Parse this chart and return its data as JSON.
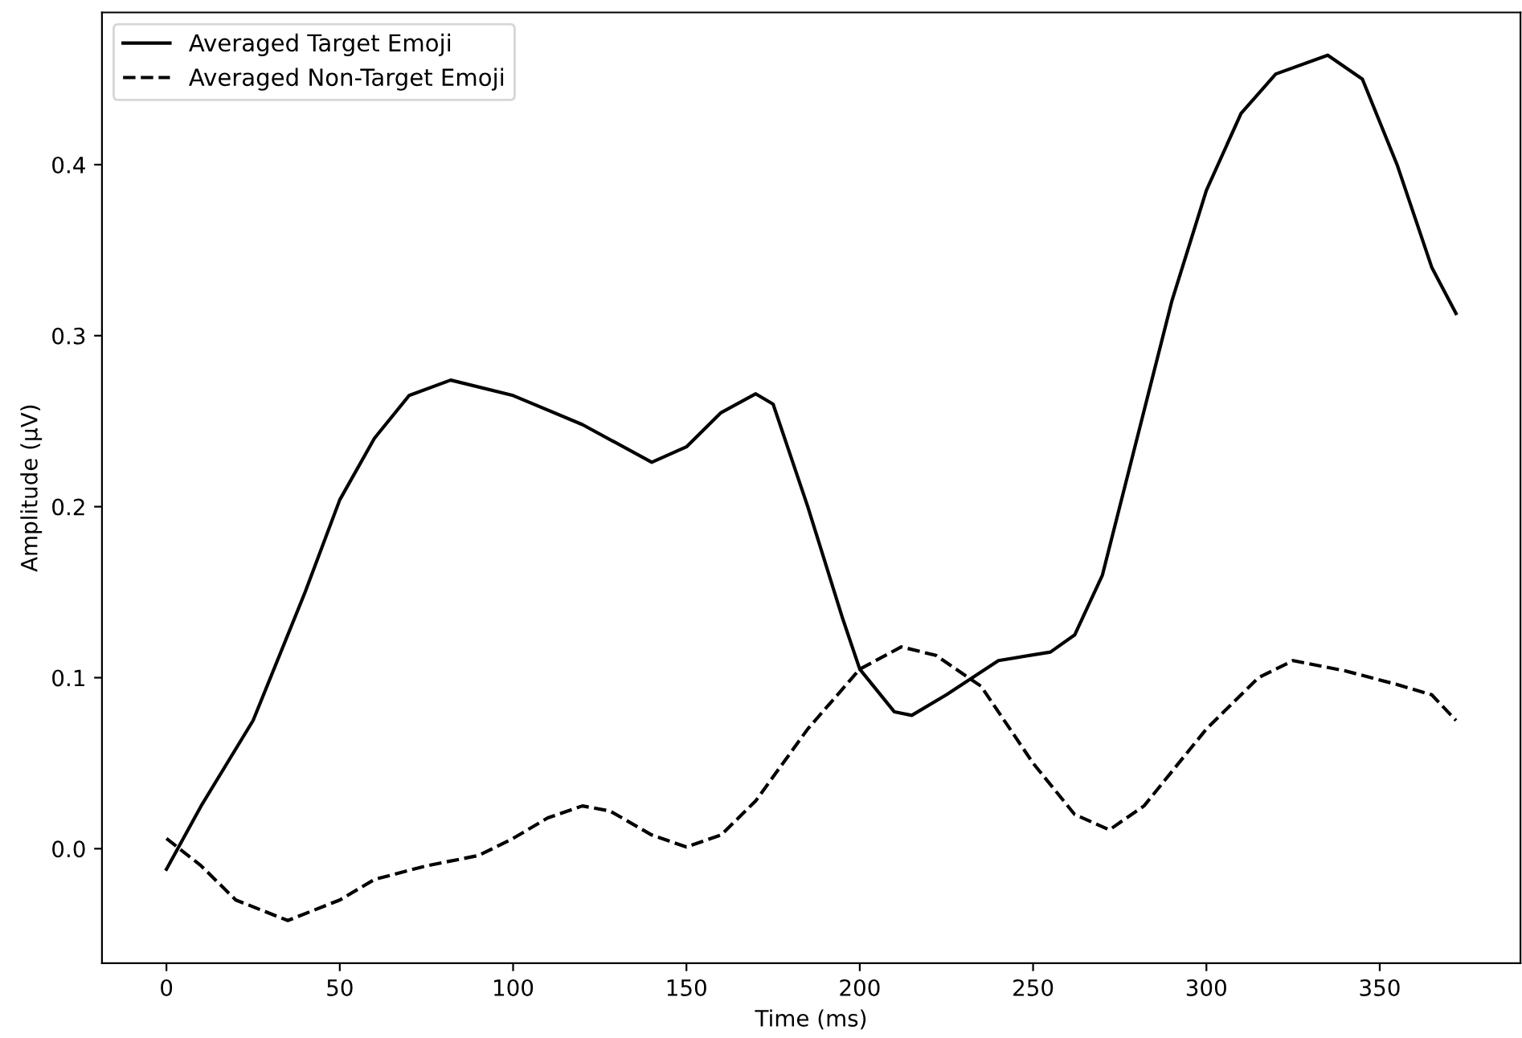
{
  "chart_data": {
    "type": "line",
    "xlabel": "Time (ms)",
    "ylabel": "Amplitude (µV)",
    "xlim": [
      -18.6,
      390.6
    ],
    "ylim": [
      -0.067,
      0.489
    ],
    "xticks": [
      0,
      50,
      100,
      150,
      200,
      250,
      300,
      350
    ],
    "yticks": [
      {
        "value": 0.0,
        "label": "0.0"
      },
      {
        "value": 0.1,
        "label": "0.1"
      },
      {
        "value": 0.2,
        "label": "0.2"
      },
      {
        "value": 0.3,
        "label": "0.3"
      },
      {
        "value": 0.4,
        "label": "0.4"
      }
    ],
    "grid": false,
    "legend": "top left",
    "marker": "none",
    "series": [
      {
        "name": "Averaged Target Emoji",
        "color": "#000000",
        "line_style": "solid",
        "x": [
          0,
          10,
          25,
          40,
          50,
          60,
          70,
          82,
          100,
          120,
          140,
          150,
          160,
          170,
          175,
          185,
          195,
          200,
          210,
          215,
          225,
          240,
          255,
          262,
          270,
          280,
          290,
          300,
          310,
          320,
          335,
          345,
          355,
          365,
          372
        ],
        "values": [
          -0.012,
          0.025,
          0.075,
          0.15,
          0.204,
          0.24,
          0.265,
          0.274,
          0.265,
          0.248,
          0.226,
          0.235,
          0.255,
          0.266,
          0.26,
          0.2,
          0.135,
          0.105,
          0.08,
          0.078,
          0.09,
          0.11,
          0.115,
          0.125,
          0.16,
          0.24,
          0.32,
          0.385,
          0.43,
          0.453,
          0.464,
          0.45,
          0.4,
          0.34,
          0.313
        ]
      },
      {
        "name": "Averaged Non-Target Emoji",
        "color": "#000000",
        "line_style": "dashed",
        "x": [
          0,
          10,
          20,
          35,
          50,
          60,
          75,
          90,
          100,
          110,
          120,
          128,
          140,
          150,
          160,
          170,
          185,
          200,
          212,
          222,
          235,
          250,
          262,
          272,
          282,
          300,
          315,
          325,
          340,
          355,
          365,
          372
        ],
        "values": [
          0.006,
          -0.01,
          -0.03,
          -0.042,
          -0.03,
          -0.018,
          -0.01,
          -0.004,
          0.006,
          0.018,
          0.025,
          0.022,
          0.008,
          0.001,
          0.008,
          0.028,
          0.07,
          0.105,
          0.118,
          0.113,
          0.095,
          0.05,
          0.02,
          0.011,
          0.025,
          0.07,
          0.1,
          0.11,
          0.104,
          0.096,
          0.09,
          0.075
        ]
      }
    ]
  }
}
